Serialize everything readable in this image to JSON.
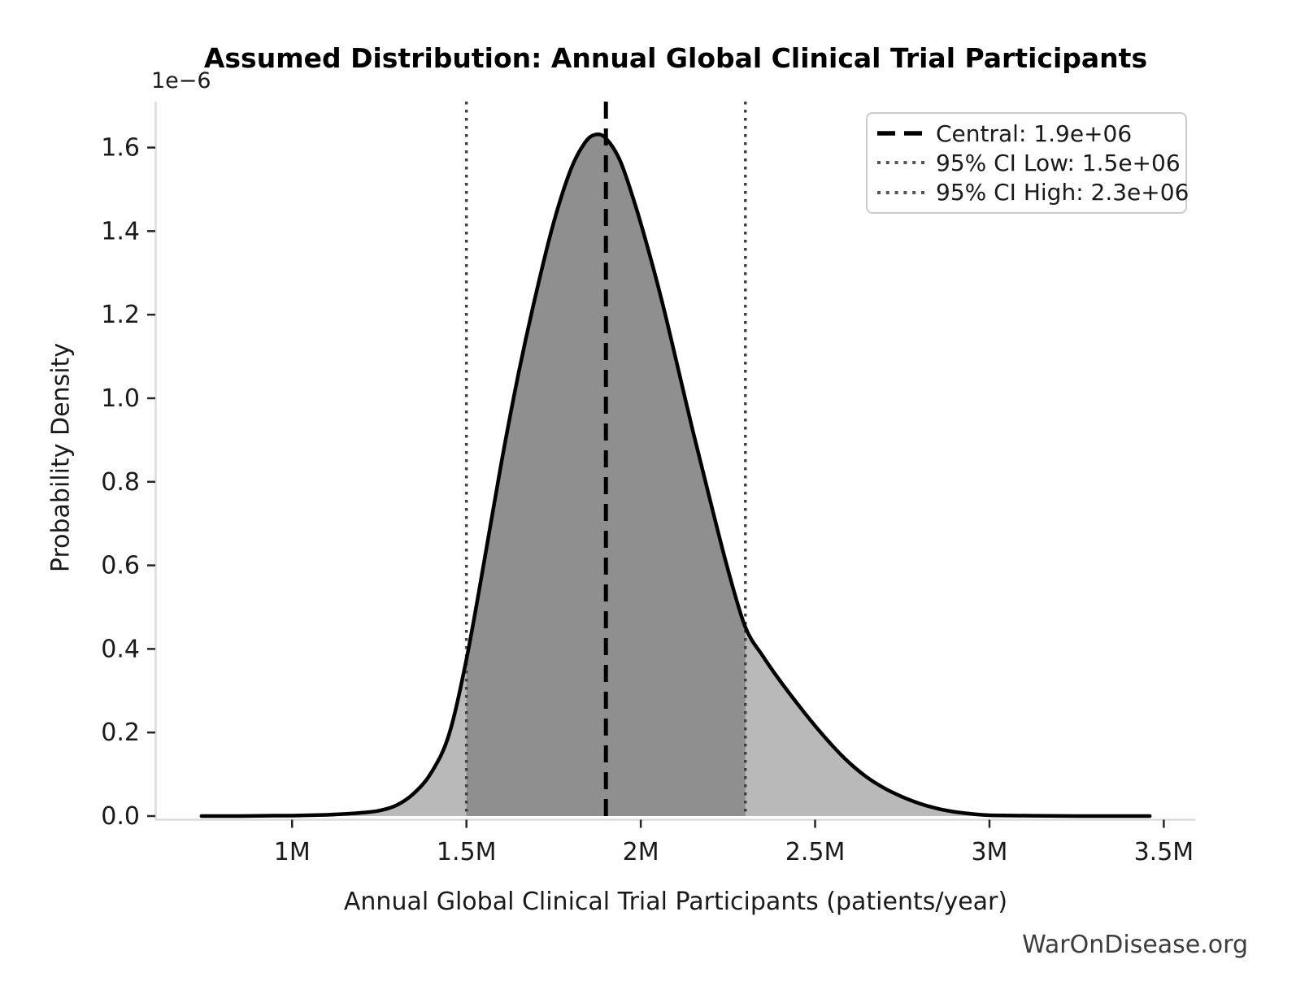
{
  "chart_data": {
    "type": "area",
    "title": "Assumed Distribution: Annual Global Clinical Trial Participants",
    "xlabel": "Annual Global Clinical Trial Participants (patients/year)",
    "ylabel": "Probability Density",
    "y_offset_label": "1e−6",
    "watermark": "WarOnDisease.org",
    "grid": false,
    "xlim_millions": [
      0.61,
      3.59
    ],
    "ylim_e6": [
      0,
      1.71
    ],
    "x_ticks": [
      {
        "value_millions": 1.0,
        "label": "1M"
      },
      {
        "value_millions": 1.5,
        "label": "1.5M"
      },
      {
        "value_millions": 2.0,
        "label": "2M"
      },
      {
        "value_millions": 2.5,
        "label": "2.5M"
      },
      {
        "value_millions": 3.0,
        "label": "3M"
      },
      {
        "value_millions": 3.5,
        "label": "3.5M"
      }
    ],
    "y_ticks": [
      {
        "value_e6": 0.0,
        "label": "0.0"
      },
      {
        "value_e6": 0.2,
        "label": "0.2"
      },
      {
        "value_e6": 0.4,
        "label": "0.4"
      },
      {
        "value_e6": 0.6,
        "label": "0.6"
      },
      {
        "value_e6": 0.8,
        "label": "0.8"
      },
      {
        "value_e6": 1.0,
        "label": "1.0"
      },
      {
        "value_e6": 1.2,
        "label": "1.2"
      },
      {
        "value_e6": 1.4,
        "label": "1.4"
      },
      {
        "value_e6": 1.6,
        "label": "1.6"
      }
    ],
    "legend": {
      "position": "upper right",
      "entries": [
        {
          "label": "Central: 1.9e+06",
          "style": "dashed",
          "color": "#000000"
        },
        {
          "label": "95% CI Low: 1.5e+06",
          "style": "dotted",
          "color": "#555555"
        },
        {
          "label": "95% CI High: 2.3e+06",
          "style": "dotted",
          "color": "#555555"
        }
      ]
    },
    "markers": {
      "central_value": 1900000,
      "ci_low_value": 1500000,
      "ci_high_value": 2300000,
      "central_millions": 1.9,
      "ci_low_millions": 1.5,
      "ci_high_millions": 2.3
    },
    "peak": {
      "x_millions": 1.87,
      "density_e6": 1.63
    },
    "colors": {
      "fill_outer": "#b9b9b9",
      "fill_inner": "#8f8f8f",
      "curve": "#000000",
      "dashed_line": "#000000",
      "dotted_line": "#424242",
      "spine": "#dcdcdc",
      "tick": "#262626",
      "text": "#1a1a1a",
      "watermark": "#3d3d3d",
      "legend_border": "#cccccc"
    },
    "curve": {
      "x_millions": [
        0.74,
        0.85,
        0.95,
        1.0,
        1.05,
        1.1,
        1.15,
        1.2,
        1.25,
        1.3,
        1.35,
        1.4,
        1.45,
        1.5,
        1.55,
        1.6,
        1.65,
        1.7,
        1.75,
        1.8,
        1.84,
        1.87,
        1.9,
        1.94,
        1.98,
        2.02,
        2.06,
        2.1,
        2.15,
        2.2,
        2.25,
        2.3,
        2.35,
        2.4,
        2.45,
        2.5,
        2.55,
        2.6,
        2.65,
        2.7,
        2.75,
        2.8,
        2.85,
        2.9,
        2.95,
        3.0,
        3.1,
        3.25,
        3.46
      ],
      "density_e6": [
        0,
        0,
        0.001,
        0.001,
        0.002,
        0.003,
        0.005,
        0.008,
        0.013,
        0.026,
        0.055,
        0.105,
        0.195,
        0.375,
        0.605,
        0.845,
        1.062,
        1.252,
        1.42,
        1.549,
        1.612,
        1.631,
        1.622,
        1.57,
        1.474,
        1.36,
        1.235,
        1.096,
        0.92,
        0.752,
        0.59,
        0.452,
        0.383,
        0.323,
        0.268,
        0.216,
        0.168,
        0.126,
        0.092,
        0.066,
        0.046,
        0.03,
        0.018,
        0.01,
        0.005,
        0.002,
        0.001,
        0.0,
        0.0
      ]
    }
  }
}
